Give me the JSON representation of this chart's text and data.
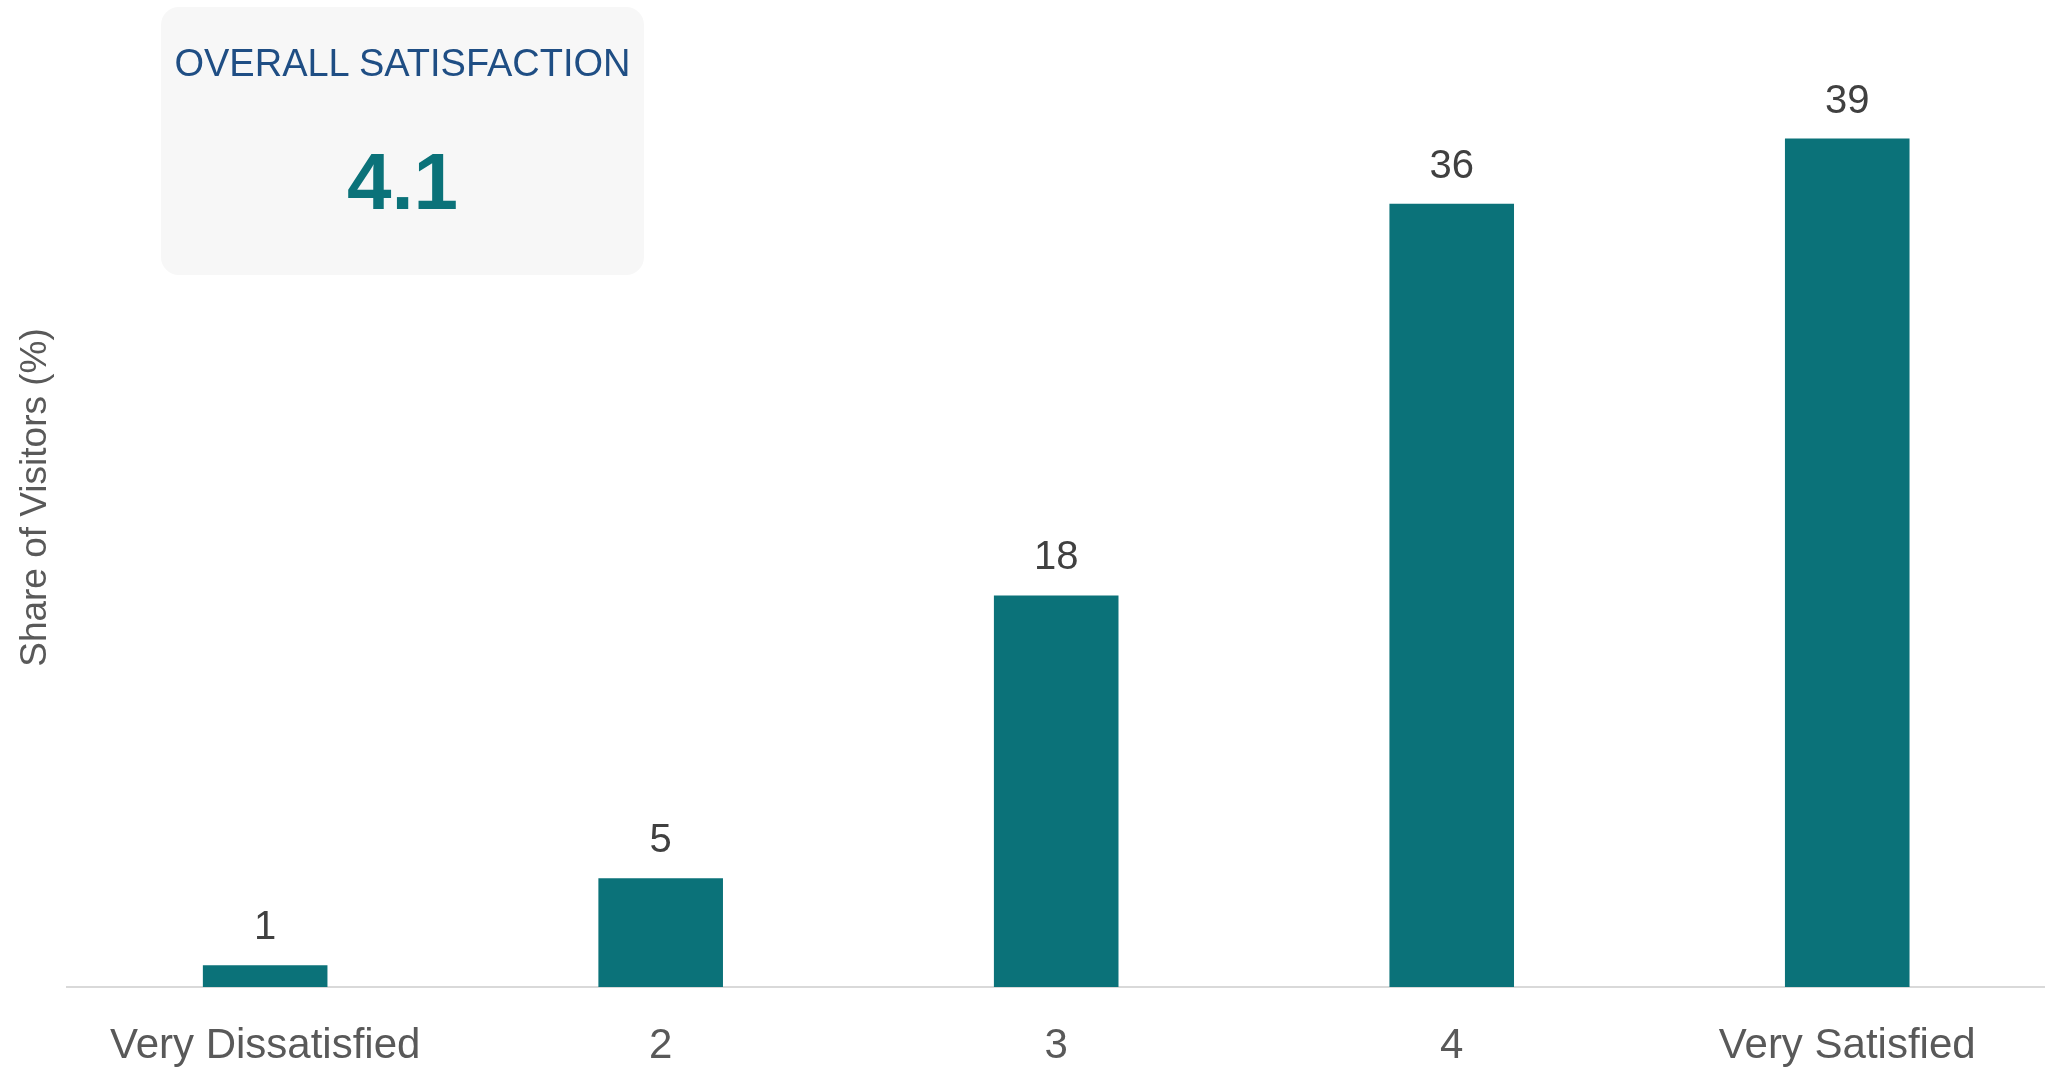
{
  "chart_data": {
    "type": "bar",
    "ylabel": "Share of Visitors (%)",
    "categories": [
      "Very Dissatisfied",
      "2",
      "3",
      "4",
      "Very Satisfied"
    ],
    "values": [
      1,
      5,
      18,
      36,
      39
    ],
    "color": "#0b7279",
    "ylim": [
      0,
      45
    ],
    "data_labels": true,
    "grid": false,
    "legend": false,
    "tick_labels": "x",
    "annotations": [
      "OVERALL SATISFACTION",
      "4.1"
    ]
  }
}
